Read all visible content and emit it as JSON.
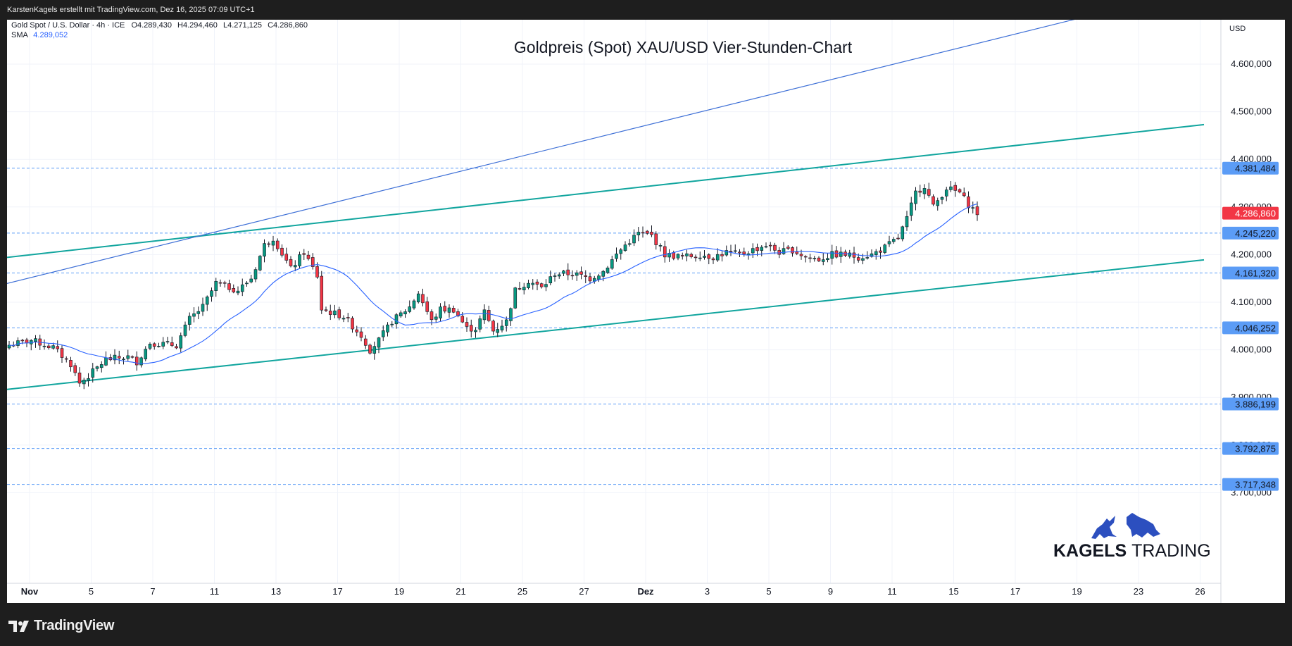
{
  "header": {
    "credit": "KarstenKagels erstellt mit TradingView.com, Dez 16, 2025 07:09 UTC+1"
  },
  "legend": {
    "symbol": "Gold Spot / U.S. Dollar · 4h · ICE",
    "open": "O4.289,430",
    "high": "H4.294,460",
    "low": "L4.271,125",
    "close": "C4.286,860",
    "sma_label": "SMA",
    "sma_value": "4.289,052"
  },
  "currency": "USD",
  "footer": {
    "brand": "TradingView"
  },
  "watermark": {
    "word1": "KAGELS",
    "word2": "TRADING"
  },
  "colors": {
    "up": "#089981",
    "down": "#f23645",
    "sma": "#2962ff",
    "level": "#5b9cf6",
    "channel": "#11a59e",
    "trend": "#3d6fd6",
    "price": "#f23645"
  },
  "chart_data": {
    "type": "candlestick",
    "title": "Goldpreis (Spot) XAU/USD Vier-Stunden-Chart",
    "timeframe": "4h",
    "ylim": [
      3700,
      4700
    ],
    "yticks": [
      {
        "v": 4600,
        "label": "4.600,000"
      },
      {
        "v": 4500,
        "label": "4.500,000"
      },
      {
        "v": 4400,
        "label": "4.400,000"
      },
      {
        "v": 4300,
        "label": "4.300,000"
      },
      {
        "v": 4200,
        "label": "4.200,000"
      },
      {
        "v": 4100,
        "label": "4.100,000"
      },
      {
        "v": 4000,
        "label": "4.000,000"
      },
      {
        "v": 3900,
        "label": "3.900,000"
      },
      {
        "v": 3800,
        "label": "3.800,000"
      },
      {
        "v": 3700,
        "label": "3.700,000"
      }
    ],
    "xticks": [
      {
        "i": 0,
        "label": "Nov",
        "bold": true
      },
      {
        "i": 14,
        "label": "5"
      },
      {
        "i": 28,
        "label": "7"
      },
      {
        "i": 42,
        "label": "11"
      },
      {
        "i": 56,
        "label": "13"
      },
      {
        "i": 70,
        "label": "17"
      },
      {
        "i": 84,
        "label": "19"
      },
      {
        "i": 98,
        "label": "21"
      },
      {
        "i": 112,
        "label": "25"
      },
      {
        "i": 126,
        "label": "27"
      },
      {
        "i": 140,
        "label": "Dez",
        "bold": true
      },
      {
        "i": 154,
        "label": "3"
      },
      {
        "i": 168,
        "label": "5"
      },
      {
        "i": 182,
        "label": "9"
      },
      {
        "i": 196,
        "label": "11"
      },
      {
        "i": 210,
        "label": "15"
      },
      {
        "i": 224,
        "label": "17"
      },
      {
        "i": 238,
        "label": "19"
      },
      {
        "i": 252,
        "label": "23"
      },
      {
        "i": 266,
        "label": "26"
      }
    ],
    "horizontal_levels": [
      {
        "value": 4381.484,
        "label": "4.381,484"
      },
      {
        "value": 4245.22,
        "label": "4.245,220"
      },
      {
        "value": 4161.32,
        "label": "4.161,320"
      },
      {
        "value": 4046.252,
        "label": "4.046,252"
      },
      {
        "value": 3886.199,
        "label": "3.886,199"
      },
      {
        "value": 3792.875,
        "label": "3.792,875"
      },
      {
        "value": 3717.348,
        "label": "3.717,348"
      }
    ],
    "last_price": {
      "value": 4286.86,
      "label": "4.286,860"
    },
    "trendlines": [
      {
        "name": "channel-upper",
        "from": {
          "i": -5,
          "v": 4189
        },
        "to": {
          "i": 272,
          "v": 4473
        }
      },
      {
        "name": "channel-lower",
        "from": {
          "i": -5,
          "v": 3912
        },
        "to": {
          "i": 272,
          "v": 4189
        }
      },
      {
        "name": "steep-trend",
        "from": {
          "i": -5,
          "v": 4128
        },
        "to": {
          "i": 254,
          "v": 4720
        }
      }
    ],
    "sma_period": 20,
    "key_points": [
      [
        0,
        4010
      ],
      [
        5,
        4020
      ],
      [
        10,
        4005
      ],
      [
        14,
        3970
      ],
      [
        16,
        3930
      ],
      [
        18,
        3945
      ],
      [
        22,
        3980
      ],
      [
        27,
        3985
      ],
      [
        29,
        3975
      ],
      [
        32,
        4015
      ],
      [
        38,
        4010
      ],
      [
        41,
        4065
      ],
      [
        44,
        4090
      ],
      [
        47,
        4140
      ],
      [
        52,
        4125
      ],
      [
        55,
        4150
      ],
      [
        58,
        4220
      ],
      [
        60,
        4235
      ],
      [
        64,
        4170
      ],
      [
        67,
        4205
      ],
      [
        70,
        4155
      ],
      [
        71,
        4085
      ],
      [
        76,
        4070
      ],
      [
        80,
        4030
      ],
      [
        82,
        4000
      ],
      [
        84,
        4020
      ],
      [
        87,
        4060
      ],
      [
        91,
        4090
      ],
      [
        93,
        4120
      ],
      [
        96,
        4060
      ],
      [
        98,
        4085
      ],
      [
        101,
        4085
      ],
      [
        104,
        4045
      ],
      [
        106,
        4045
      ],
      [
        108,
        4080
      ],
      [
        110,
        4040
      ],
      [
        113,
        4060
      ],
      [
        115,
        4125
      ],
      [
        118,
        4145
      ],
      [
        121,
        4130
      ],
      [
        124,
        4160
      ],
      [
        128,
        4160
      ],
      [
        132,
        4150
      ],
      [
        135,
        4165
      ],
      [
        138,
        4200
      ],
      [
        140,
        4220
      ],
      [
        143,
        4245
      ],
      [
        146,
        4240
      ],
      [
        149,
        4200
      ],
      [
        153,
        4195
      ],
      [
        157,
        4200
      ],
      [
        160,
        4195
      ],
      [
        163,
        4205
      ],
      [
        166,
        4200
      ],
      [
        169,
        4210
      ],
      [
        172,
        4220
      ],
      [
        175,
        4205
      ],
      [
        178,
        4210
      ],
      [
        181,
        4195
      ],
      [
        184,
        4190
      ],
      [
        187,
        4200
      ],
      [
        190,
        4200
      ],
      [
        193,
        4195
      ],
      [
        196,
        4200
      ],
      [
        199,
        4215
      ],
      [
        202,
        4235
      ],
      [
        204,
        4275
      ],
      [
        206,
        4330
      ],
      [
        208,
        4345
      ],
      [
        210,
        4300
      ],
      [
        213,
        4340
      ],
      [
        216,
        4330
      ],
      [
        218,
        4305
      ],
      [
        220,
        4287
      ]
    ]
  }
}
